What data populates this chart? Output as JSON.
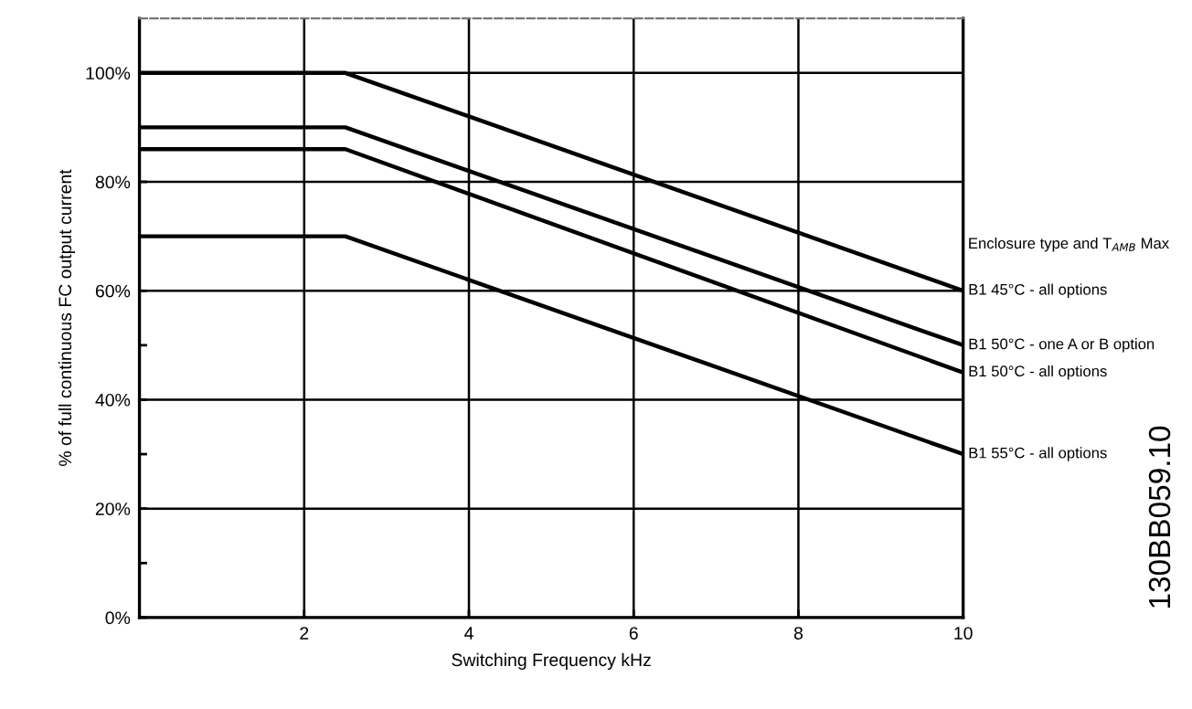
{
  "chart_data": {
    "type": "line",
    "xlabel": "Switching Frequency kHz",
    "ylabel": "% of full continuous FC output current",
    "x": [
      0,
      2.5,
      10
    ],
    "series": [
      {
        "name": "B1 45°C - all options",
        "color": "#000000",
        "values": [
          100,
          100,
          60
        ]
      },
      {
        "name": "B1 50°C - one A or B option",
        "color": "#000000",
        "values": [
          90,
          90,
          50
        ]
      },
      {
        "name": "B1 50°C - all options",
        "color": "#000000",
        "values": [
          86,
          86,
          45
        ]
      },
      {
        "name": "B1 55°C - all options",
        "color": "#000000",
        "values": [
          70,
          70,
          30
        ]
      }
    ],
    "xlim": [
      0,
      10
    ],
    "xticks": [
      2,
      4,
      6,
      8,
      10
    ],
    "ylim": [
      0,
      110
    ],
    "yticks": [
      {
        "value": 0,
        "label": "0%"
      },
      {
        "value": 10,
        "label": null
      },
      {
        "value": 20,
        "label": "20%"
      },
      {
        "value": 30,
        "label": null
      },
      {
        "value": 40,
        "label": "40%"
      },
      {
        "value": 50,
        "label": null
      },
      {
        "value": 60,
        "label": "60%"
      },
      {
        "value": 70,
        "label": null
      },
      {
        "value": 80,
        "label": "80%"
      },
      {
        "value": 90,
        "label": null
      },
      {
        "value": 100,
        "label": "100%"
      }
    ],
    "grid": true,
    "legend": false,
    "marker": "none",
    "line_style": "solid",
    "annotations": [
      "Enclosure type and T$_{AMB}$ Max",
      "130BB059.10"
    ]
  }
}
